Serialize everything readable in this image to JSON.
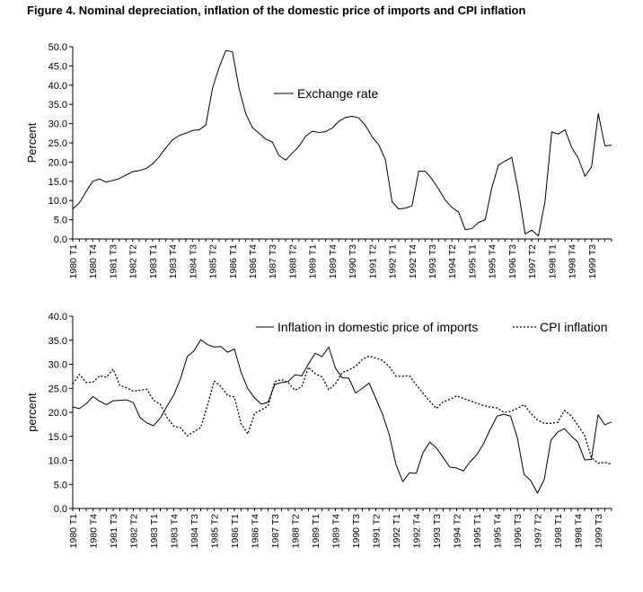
{
  "figure_title": "Figure 4. Nominal depreciation, inflation of the domestic price of imports and CPI inflation",
  "colors": {
    "line": "#000000",
    "axis": "#000000",
    "background": "#ffffff"
  },
  "chart_data": [
    {
      "type": "line",
      "title": "",
      "xlabel": "",
      "ylabel": "Percent",
      "ylim": [
        0,
        50
      ],
      "ytick_step": 5,
      "yticks": [
        "0.0",
        "5.0",
        "10.0",
        "15.0",
        "20.0",
        "25.0",
        "30.0",
        "35.0",
        "40.0",
        "45.0",
        "50.0"
      ],
      "x_tick_labels": [
        "1980 T1",
        "1980 T4",
        "1981 T3",
        "1982 T2",
        "1983 T1",
        "1983 T4",
        "1984 T3",
        "1985 T2",
        "1986 T1",
        "1986 T4",
        "1987 T3",
        "1988 T2",
        "1989 T1",
        "1989 T4",
        "1990 T3",
        "1991 T2",
        "1992 T1",
        "1992 T4",
        "1993 T3",
        "1994 T2",
        "1995 T1",
        "1995 T4",
        "1996 T3",
        "1997 T2",
        "1998 T1",
        "1998 T4",
        "1999 T3"
      ],
      "legend": "inside-center",
      "series": [
        {
          "name": "Exchange rate",
          "style": "solid",
          "values": [
            7.8,
            9.4,
            12.3,
            15.0,
            15.6,
            14.8,
            15.2,
            15.7,
            16.6,
            17.5,
            17.8,
            18.3,
            19.5,
            21.4,
            23.7,
            25.8,
            26.9,
            27.5,
            28.2,
            28.4,
            29.6,
            39.1,
            44.6,
            49.0,
            48.7,
            39.2,
            32.6,
            29.0,
            27.5,
            26.0,
            25.2,
            21.7,
            20.5,
            22.3,
            24.1,
            26.7,
            28.0,
            27.7,
            27.9,
            28.8,
            30.6,
            31.6,
            31.9,
            31.5,
            29.5,
            26.6,
            24.5,
            20.6,
            9.7,
            7.8,
            8.0,
            8.6,
            17.6,
            17.6,
            15.6,
            13.0,
            10.1,
            8.2,
            7.0,
            2.4,
            2.7,
            4.3,
            5.0,
            13.3,
            19.2,
            20.3,
            21.2,
            12.4,
            1.3,
            2.3,
            0.8,
            9.8,
            27.8,
            27.3,
            28.4,
            23.8,
            21.0,
            16.3,
            18.8,
            32.6,
            24.2,
            24.4
          ]
        }
      ]
    },
    {
      "type": "line",
      "title": "",
      "xlabel": "",
      "ylabel": "percent",
      "ylim": [
        0,
        40
      ],
      "ytick_step": 5,
      "yticks": [
        "0.0",
        "5.0",
        "10.0",
        "15.0",
        "20.0",
        "25.0",
        "30.0",
        "35.0",
        "40.0"
      ],
      "x_tick_labels": [
        "1980 T1",
        "1980 T4",
        "1981 T3",
        "1982 T2",
        "1983 T1",
        "1983 T4",
        "1984 T3",
        "1985 T2",
        "1986 T1",
        "1986 T4",
        "1987 T3",
        "1988 T2",
        "1989 T1",
        "1989 T4",
        "1990 T3",
        "1991 T2",
        "1992 T1",
        "1992 T4",
        "1993 T3",
        "1994 T2",
        "1995 T1",
        "1995 T4",
        "1996 T3",
        "1997 T2",
        "1998 T1",
        "1998 T4",
        "1999 T3"
      ],
      "legend": "top-right",
      "series": [
        {
          "name": "Inflation in domestic price of imports",
          "style": "solid",
          "values": [
            21.1,
            20.8,
            21.8,
            23.3,
            22.3,
            21.6,
            22.4,
            22.5,
            22.6,
            22.0,
            18.9,
            17.8,
            17.2,
            18.8,
            21.3,
            23.6,
            27.0,
            31.6,
            32.8,
            35.1,
            34.1,
            33.6,
            33.7,
            32.5,
            33.2,
            28.3,
            24.9,
            23.0,
            21.7,
            22.1,
            25.8,
            26.2,
            26.4,
            27.8,
            27.6,
            30.1,
            32.3,
            31.6,
            33.6,
            29.2,
            27.2,
            27.1,
            24.0,
            25.0,
            26.1,
            22.9,
            19.6,
            15.3,
            9.1,
            5.6,
            7.4,
            7.3,
            11.6,
            13.8,
            12.6,
            10.6,
            8.6,
            8.4,
            7.8,
            9.7,
            11.2,
            13.5,
            16.5,
            19.2,
            19.6,
            19.2,
            14.8,
            7.1,
            5.8,
            3.2,
            6.0,
            14.2,
            15.9,
            16.6,
            15.1,
            13.8,
            10.1,
            10.2,
            19.5,
            17.4,
            18.0
          ]
        },
        {
          "name": "CPI inflation",
          "style": "dotted",
          "values": [
            25.9,
            27.9,
            26.2,
            26.3,
            27.6,
            27.3,
            29.0,
            25.6,
            25.1,
            24.4,
            24.6,
            24.8,
            22.5,
            21.7,
            18.9,
            17.1,
            16.8,
            15.1,
            16.0,
            16.8,
            21.4,
            26.5,
            25.4,
            23.5,
            23.2,
            17.6,
            15.5,
            19.8,
            20.5,
            21.3,
            26.4,
            26.8,
            26.2,
            24.6,
            25.3,
            29.4,
            28.0,
            27.4,
            24.7,
            25.9,
            28.3,
            28.8,
            29.6,
            31.0,
            31.7,
            31.3,
            30.8,
            29.5,
            27.5,
            27.5,
            27.6,
            25.7,
            24.0,
            22.3,
            20.8,
            22.2,
            22.7,
            23.4,
            22.9,
            22.4,
            21.9,
            21.4,
            21.1,
            20.9,
            20.0,
            20.2,
            20.8,
            21.6,
            19.8,
            18.4,
            17.7,
            17.7,
            17.9,
            20.4,
            19.3,
            17.3,
            15.2,
            10.6,
            9.4,
            9.6,
            9.2
          ]
        }
      ]
    }
  ]
}
